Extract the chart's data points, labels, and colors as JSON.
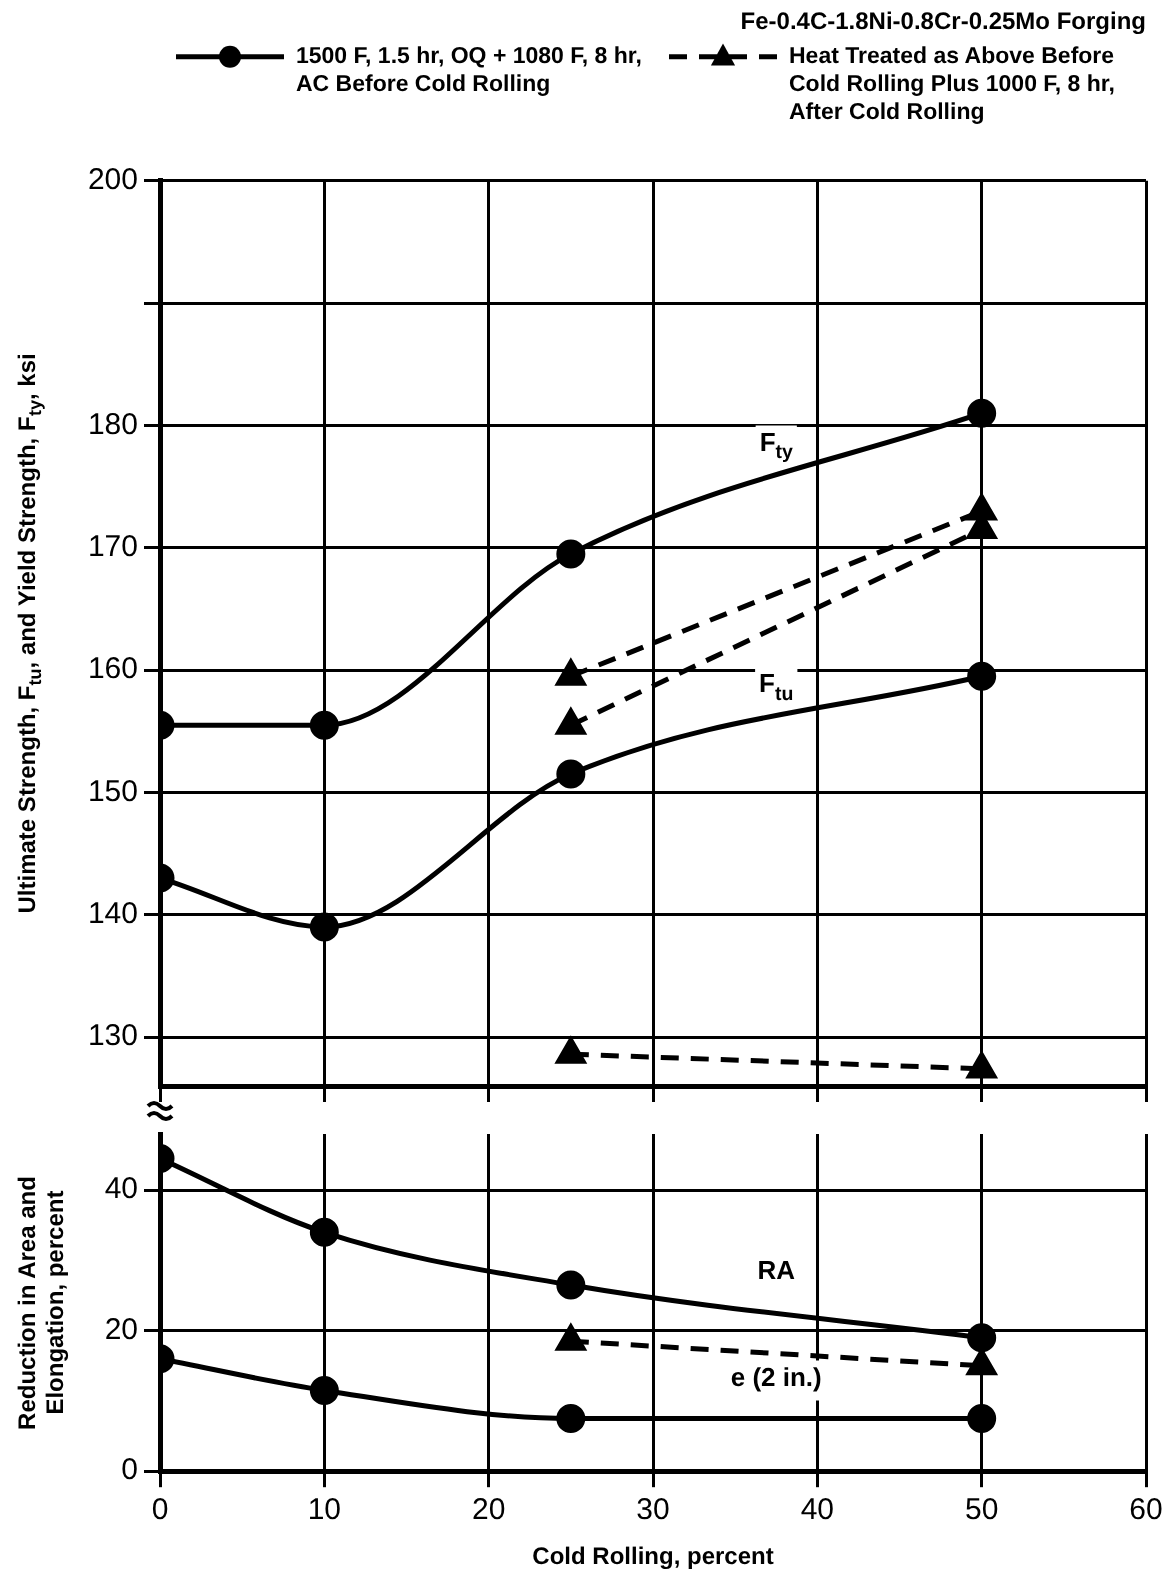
{
  "chart_data": [
    {
      "type": "line",
      "title": "Fe-0.4C-1.8Ni-0.8Cr-0.25Mo Forging",
      "ylabel": "Ultimate Strength, F$_{tu}$, and Yield Strength, F$_{ty}$, ksi",
      "xlim": [
        0,
        60
      ],
      "xticks": [
        0,
        10,
        20,
        30,
        40,
        50,
        60
      ],
      "ylim": [
        126,
        200
      ],
      "yticks": [
        130,
        140,
        150,
        160,
        170,
        180,
        {
          "value": 190,
          "label": null
        },
        200
      ],
      "tick_labels": "y",
      "grid": true,
      "legend": "top",
      "series": [
        {
          "name": "1500 F, 1.5 hr, OQ + 1080 F, 8 hr, AC Before Cold Rolling",
          "color": "#000000",
          "marker": "circle",
          "line_style": "solid",
          "x": [
            0,
            10,
            25,
            50
          ],
          "values": [
            155.5,
            155.5,
            169.5,
            181
          ]
        },
        {
          "color": "#000000",
          "marker": "circle",
          "line_style": "solid",
          "x": [
            0,
            10,
            25,
            50
          ],
          "values": [
            143,
            139,
            151.5,
            159.5
          ]
        },
        {
          "name": "Heat Treated as Above Before Cold Rolling Plus 1000 F, 8 hr, After Cold Rolling",
          "color": "#000000",
          "marker": "triangle",
          "line_style": "dashed",
          "x": [
            25,
            50
          ],
          "values": [
            159.5,
            173
          ]
        },
        {
          "color": "#000000",
          "marker": "triangle",
          "line_style": "dashed",
          "x": [
            25,
            50
          ],
          "values": [
            155.5,
            171.5
          ]
        },
        {
          "color": "#000000",
          "marker": "triangle",
          "line_style": "dashed",
          "x": [
            25,
            50
          ],
          "values": [
            128.6,
            127.4
          ]
        }
      ],
      "annotations": [
        "F$_{ty}$",
        "F$_{tu}$"
      ]
    },
    {
      "type": "line",
      "xlabel": "Cold Rolling, percent",
      "ylabel": "Reduction in Area and Elongation, percent",
      "xlim": [
        0,
        60
      ],
      "xticks": [
        0,
        10,
        20,
        30,
        40,
        50,
        60
      ],
      "ylim": [
        0,
        48
      ],
      "yticks": [
        0,
        20,
        40
      ],
      "grid": true,
      "series": [
        {
          "color": "#000000",
          "marker": "circle",
          "line_style": "solid",
          "x": [
            0,
            10,
            25,
            50
          ],
          "values": [
            44.5,
            34,
            26.5,
            19
          ]
        },
        {
          "color": "#000000",
          "marker": "circle",
          "line_style": "solid",
          "x": [
            0,
            10,
            25,
            50
          ],
          "values": [
            16,
            11.5,
            7.5,
            7.5
          ]
        },
        {
          "color": "#000000",
          "marker": "triangle",
          "line_style": "dashed",
          "x": [
            25,
            50
          ],
          "values": [
            18.5,
            15
          ]
        }
      ],
      "annotations": [
        "RA",
        "e (2 in.)"
      ]
    }
  ]
}
